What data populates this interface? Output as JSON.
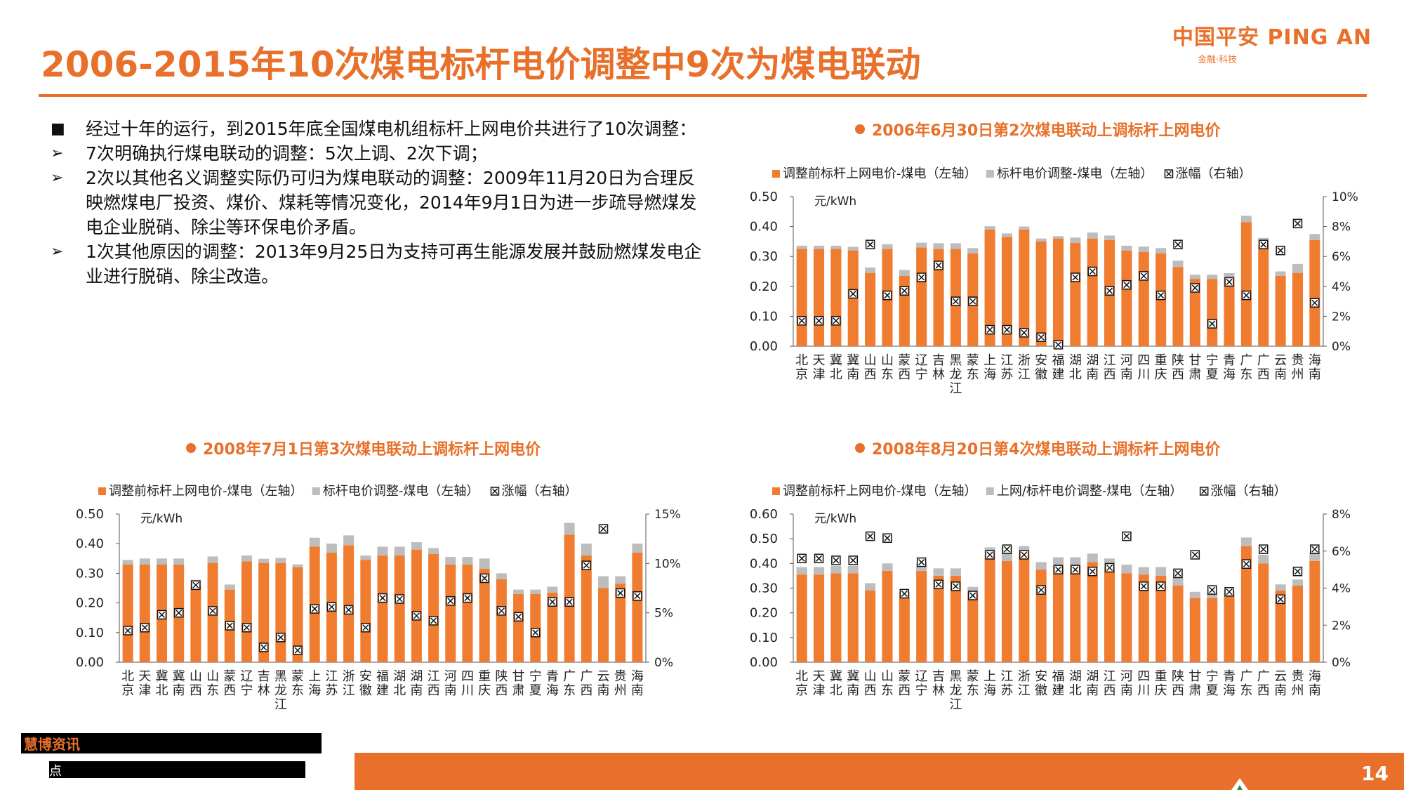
{
  "page": {
    "title": "2006-2015年10次煤电标杆电价调整中9次为煤电联动",
    "page_number": "14",
    "logo": {
      "main": "中国平安 PING AN",
      "sub": "金融·科技"
    },
    "source": {
      "line1": "慧博资讯",
      "line2": "点"
    },
    "colors": {
      "accent": "#e8702a",
      "bar_base": "#f07c30",
      "bar_adj": "#bdbdbd"
    }
  },
  "bullets": [
    {
      "marker": "■",
      "text": "经过十年的运行，到2015年底全国煤电机组标杆上网电价共进行了10次调整："
    },
    {
      "marker": "➢",
      "text": "7次明确执行煤电联动的调整：5次上调、2次下调；"
    },
    {
      "marker": "➢",
      "text": "2次以其他名义调整实际仍可归为煤电联动的调整：2009年11月20日为合理反映燃煤电厂投资、煤价、煤耗等情况变化，2014年9月1日为进一步疏导燃煤发电企业脱硝、除尘等环保电价矛盾。"
    },
    {
      "marker": "➢",
      "text": "1次其他原因的调整：2013年9月25日为支持可再生能源发展并鼓励燃煤发电企业进行脱硝、除尘改造。"
    }
  ],
  "chart_data": [
    {
      "type": "bar",
      "title": "2006年6月30日第2次煤电联动上调标杆上网电价",
      "unit": "元/kWh",
      "categories": [
        "北京",
        "天津",
        "冀北",
        "冀南",
        "山西",
        "山东",
        "蒙西",
        "辽宁",
        "吉林",
        "黑龙江",
        "蒙东",
        "上海",
        "江苏",
        "浙江",
        "安徽",
        "福建",
        "湖北",
        "湖南",
        "江西",
        "河南",
        "四川",
        "重庆",
        "陕西",
        "甘肃",
        "宁夏",
        "青海",
        "广东",
        "广西",
        "云南",
        "贵州",
        "海南"
      ],
      "series": [
        {
          "name": "调整前标杆上网电价-煤电（左轴）",
          "axis": "left",
          "stacked": true,
          "values": [
            0.325,
            0.325,
            0.325,
            0.32,
            0.245,
            0.325,
            0.235,
            0.33,
            0.325,
            0.325,
            0.31,
            0.39,
            0.365,
            0.39,
            0.35,
            0.36,
            0.345,
            0.36,
            0.355,
            0.32,
            0.315,
            0.31,
            0.265,
            0.225,
            0.225,
            0.23,
            0.415,
            0.34,
            0.235,
            0.245,
            0.355
          ]
        },
        {
          "name": "标杆电价调整-煤电（左轴）",
          "axis": "left",
          "stacked": true,
          "values": [
            0.011,
            0.011,
            0.011,
            0.012,
            0.018,
            0.016,
            0.02,
            0.016,
            0.019,
            0.019,
            0.018,
            0.011,
            0.012,
            0.01,
            0.01,
            0.008,
            0.018,
            0.02,
            0.015,
            0.016,
            0.018,
            0.018,
            0.021,
            0.014,
            0.014,
            0.014,
            0.021,
            0.022,
            0.015,
            0.03,
            0.02
          ]
        },
        {
          "name": "涨幅（右轴）",
          "axis": "right",
          "type": "marker",
          "values": [
            1.7,
            1.7,
            1.7,
            3.5,
            6.8,
            3.4,
            3.7,
            4.6,
            5.4,
            3.0,
            3.0,
            1.1,
            1.1,
            0.9,
            0.6,
            0.1,
            4.6,
            5.0,
            3.7,
            4.1,
            4.7,
            3.4,
            6.8,
            3.9,
            1.5,
            4.3,
            3.4,
            6.8,
            6.4,
            8.2,
            2.9
          ]
        }
      ],
      "ylim_left": [
        0,
        0.5
      ],
      "yticks_left": [
        "0.00",
        "0.10",
        "0.20",
        "0.30",
        "0.40",
        "0.50"
      ],
      "ylim_right": [
        0,
        10
      ],
      "yticks_right": [
        "0%",
        "2%",
        "4%",
        "6%",
        "8%",
        "10%"
      ]
    },
    {
      "type": "bar",
      "title": "2008年7月1日第3次煤电联动上调标杆上网电价",
      "unit": "元/kWh",
      "categories": [
        "北京",
        "天津",
        "冀北",
        "冀南",
        "山西",
        "山东",
        "蒙西",
        "辽宁",
        "吉林",
        "黑龙江",
        "蒙东",
        "上海",
        "江苏",
        "浙江",
        "安徽",
        "福建",
        "湖北",
        "湖南",
        "江西",
        "河南",
        "四川",
        "重庆",
        "陕西",
        "甘肃",
        "宁夏",
        "青海",
        "广东",
        "广西",
        "云南",
        "贵州",
        "海南"
      ],
      "series": [
        {
          "name": "调整前标杆上网电价-煤电（左轴）",
          "axis": "left",
          "stacked": true,
          "values": [
            0.33,
            0.33,
            0.33,
            0.33,
            0.26,
            0.335,
            0.245,
            0.34,
            0.335,
            0.335,
            0.32,
            0.39,
            0.37,
            0.395,
            0.345,
            0.36,
            0.36,
            0.38,
            0.365,
            0.33,
            0.33,
            0.315,
            0.28,
            0.23,
            0.23,
            0.235,
            0.43,
            0.36,
            0.25,
            0.265,
            0.37
          ]
        },
        {
          "name": "标杆电价调整-煤电（左轴）",
          "axis": "left",
          "stacked": true,
          "values": [
            0.015,
            0.02,
            0.02,
            0.02,
            0.018,
            0.022,
            0.017,
            0.02,
            0.014,
            0.017,
            0.01,
            0.03,
            0.03,
            0.033,
            0.015,
            0.03,
            0.03,
            0.025,
            0.02,
            0.025,
            0.025,
            0.035,
            0.02,
            0.015,
            0.015,
            0.02,
            0.04,
            0.04,
            0.04,
            0.025,
            0.03
          ]
        },
        {
          "name": "涨幅（右轴）",
          "axis": "right",
          "type": "marker",
          "values": [
            3.2,
            3.5,
            4.8,
            5.0,
            7.8,
            5.2,
            3.7,
            3.5,
            1.5,
            2.5,
            1.2,
            5.4,
            5.6,
            5.3,
            3.5,
            6.5,
            6.4,
            4.7,
            4.2,
            6.2,
            6.5,
            8.5,
            5.2,
            4.6,
            3.0,
            6.1,
            6.1,
            9.8,
            13.5,
            7.0,
            6.7
          ]
        }
      ],
      "ylim_left": [
        0,
        0.5
      ],
      "yticks_left": [
        "0.00",
        "0.10",
        "0.20",
        "0.30",
        "0.40",
        "0.50"
      ],
      "ylim_right": [
        0,
        15
      ],
      "yticks_right": [
        "0%",
        "5%",
        "10%",
        "15%"
      ]
    },
    {
      "type": "bar",
      "title": "2008年8月20日第4次煤电联动上调标杆上网电价",
      "unit": "元/kWh",
      "categories": [
        "北京",
        "天津",
        "冀北",
        "冀南",
        "山西",
        "山东",
        "蒙西",
        "辽宁",
        "吉林",
        "黑龙江",
        "蒙东",
        "上海",
        "江苏",
        "浙江",
        "安徽",
        "福建",
        "湖北",
        "湖南",
        "江西",
        "河南",
        "四川",
        "重庆",
        "陕西",
        "甘肃",
        "宁夏",
        "青海",
        "广东",
        "广西",
        "云南",
        "贵州",
        "海南"
      ],
      "series": [
        {
          "name": "调整前标杆上网电价-煤电（左轴）",
          "axis": "left",
          "stacked": true,
          "values": [
            0.355,
            0.355,
            0.36,
            0.36,
            0.29,
            0.37,
            0.26,
            0.37,
            0.35,
            0.35,
            0.28,
            0.43,
            0.41,
            0.435,
            0.375,
            0.39,
            0.39,
            0.405,
            0.385,
            0.36,
            0.355,
            0.35,
            0.31,
            0.26,
            0.26,
            0.27,
            0.47,
            0.4,
            0.29,
            0.31,
            0.41
          ]
        },
        {
          "name": "上网/标杆电价调整-煤电（左轴）",
          "axis": "left",
          "stacked": true,
          "values": [
            0.03,
            0.03,
            0.03,
            0.03,
            0.03,
            0.03,
            0.025,
            0.03,
            0.03,
            0.03,
            0.025,
            0.035,
            0.06,
            0.035,
            0.03,
            0.035,
            0.035,
            0.035,
            0.035,
            0.035,
            0.03,
            0.035,
            0.035,
            0.025,
            0.02,
            0.02,
            0.035,
            0.035,
            0.025,
            0.025,
            0.035
          ]
        },
        {
          "name": "涨幅（右轴）",
          "axis": "right",
          "type": "marker",
          "values": [
            5.6,
            5.6,
            5.5,
            5.5,
            6.8,
            6.7,
            3.7,
            5.4,
            4.2,
            4.1,
            3.6,
            5.8,
            6.1,
            5.8,
            3.9,
            5.0,
            5.0,
            4.9,
            5.1,
            6.8,
            4.1,
            4.1,
            4.8,
            5.8,
            3.9,
            3.8,
            5.3,
            6.1,
            3.4,
            4.9,
            6.1
          ]
        }
      ],
      "ylim_left": [
        0,
        0.6
      ],
      "yticks_left": [
        "0.00",
        "0.10",
        "0.20",
        "0.30",
        "0.40",
        "0.50",
        "0.60"
      ],
      "ylim_right": [
        0,
        8
      ],
      "yticks_right": [
        "0%",
        "2%",
        "4%",
        "6%",
        "8%"
      ]
    }
  ]
}
